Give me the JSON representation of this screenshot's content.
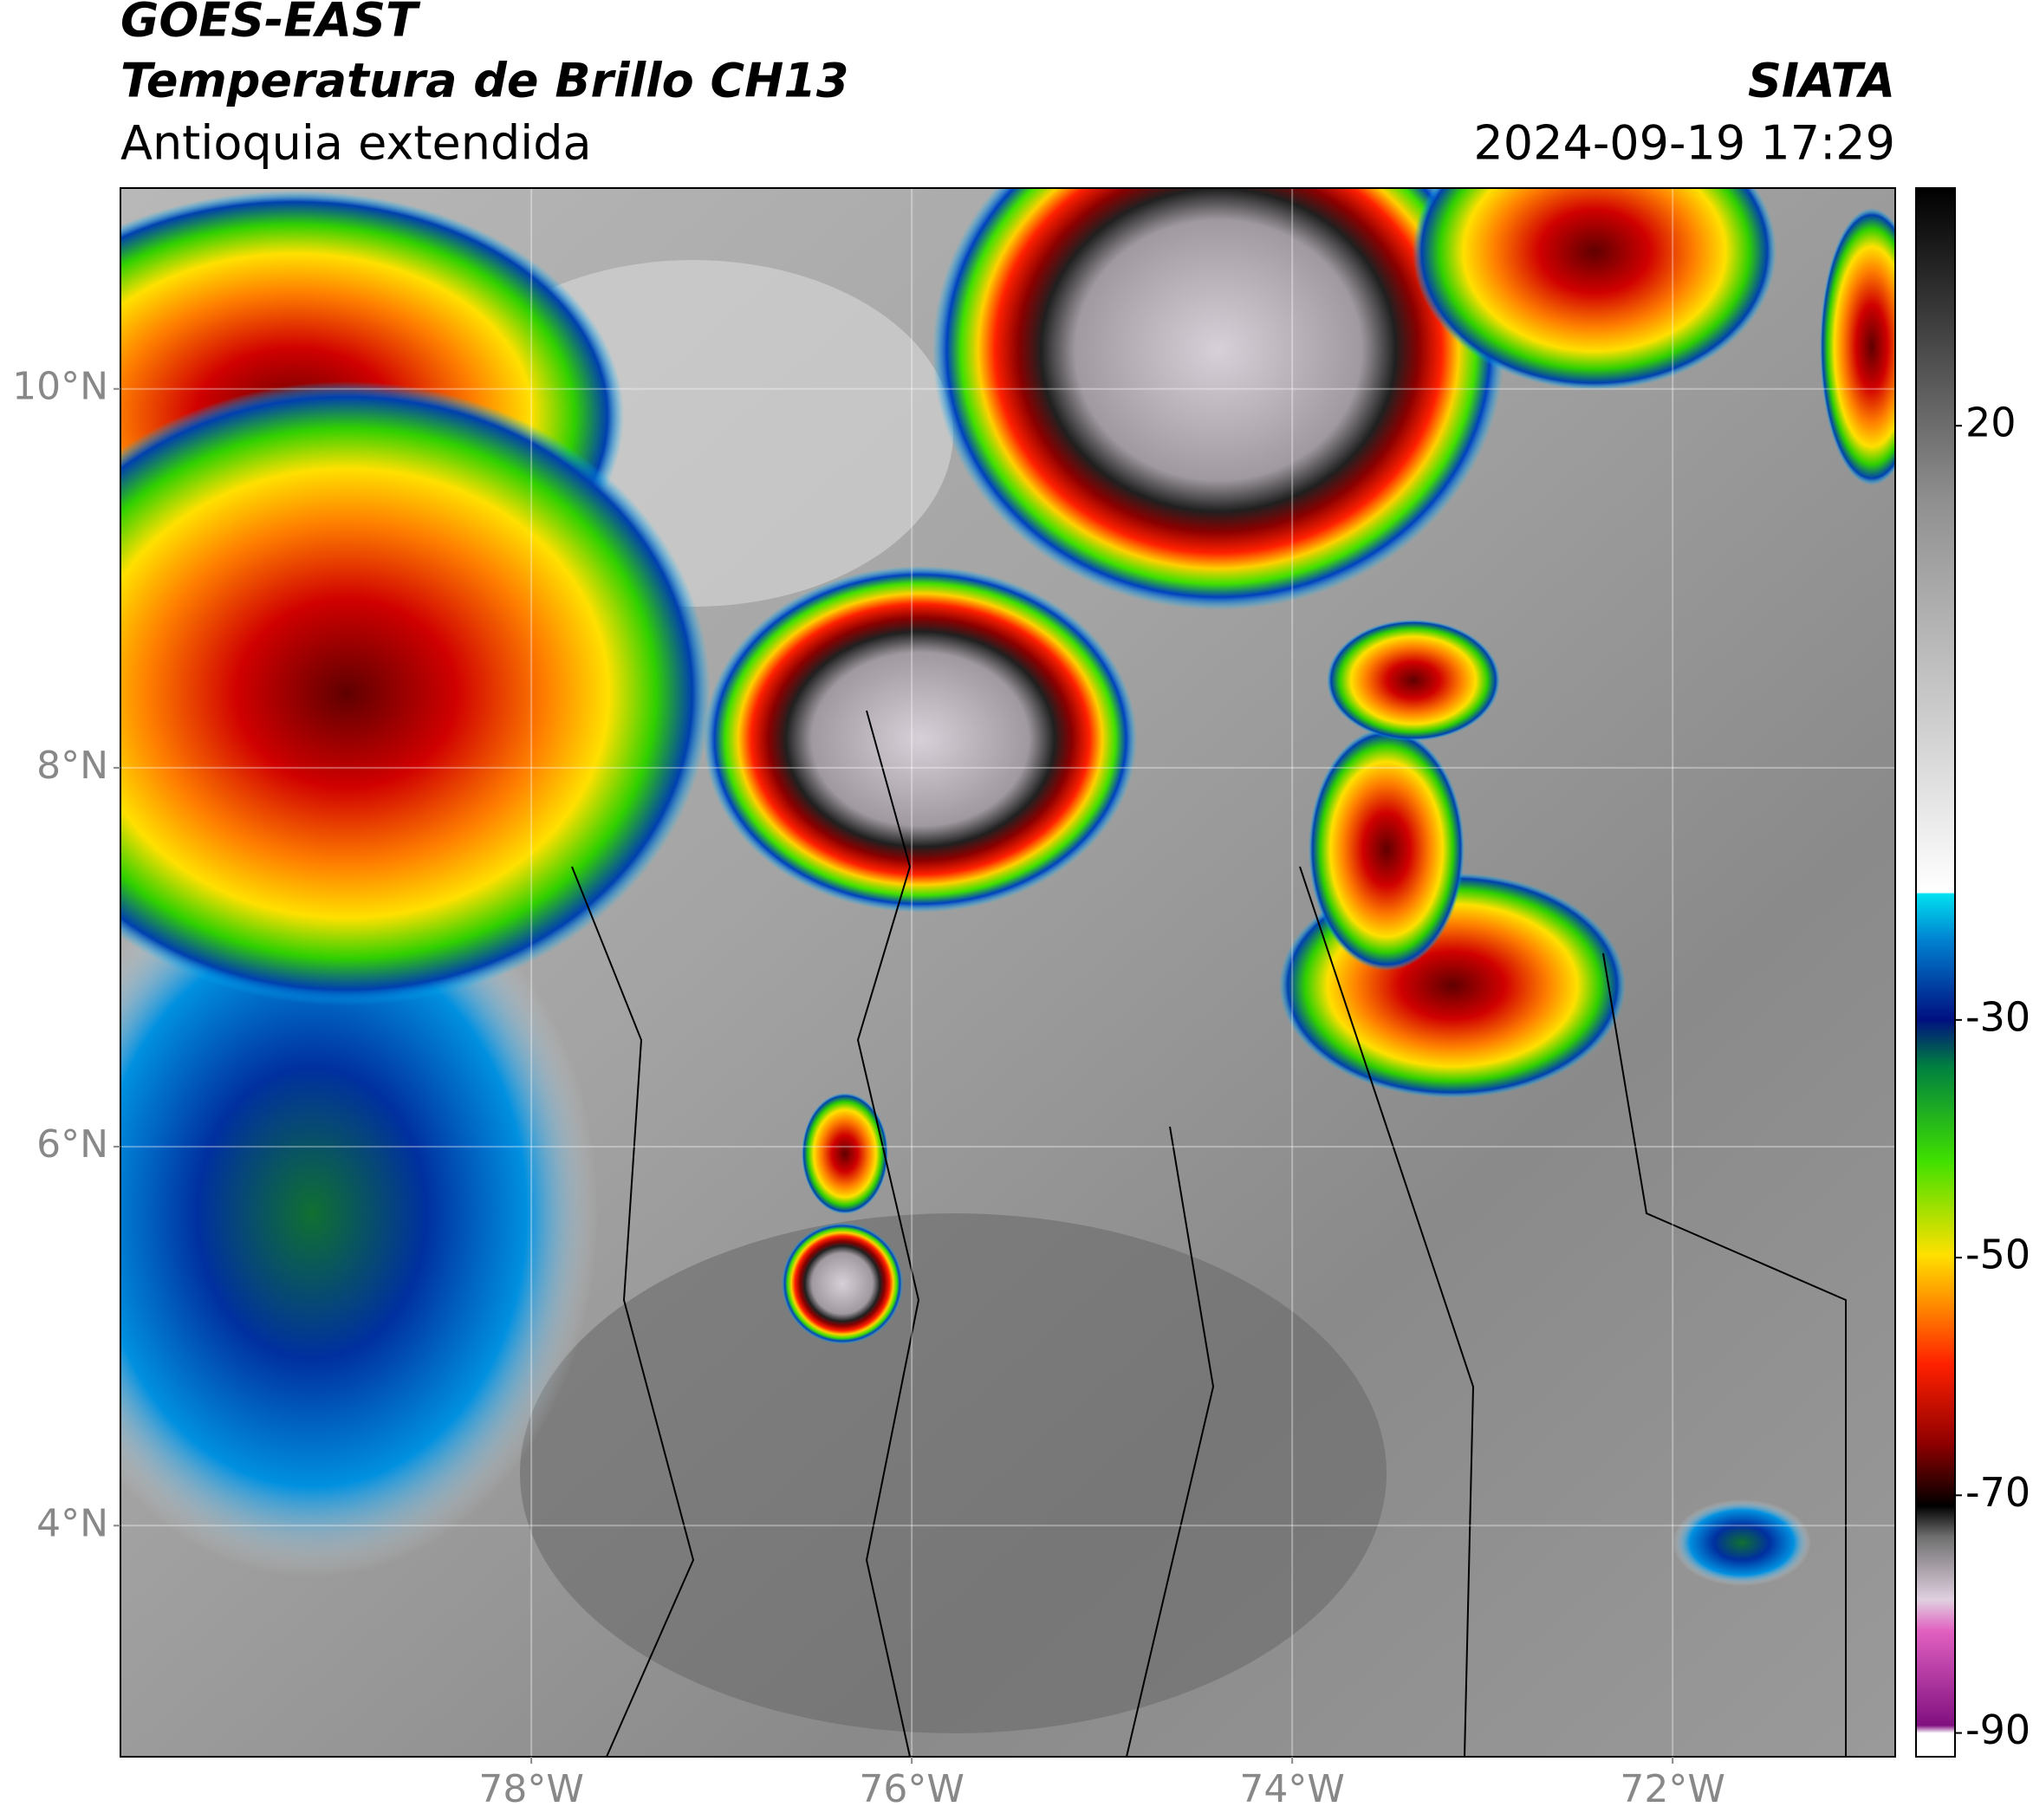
{
  "header": {
    "title": "GOES-EAST",
    "product": "Temperatura de Brillo CH13",
    "region": "Antioquia extendida",
    "agency": "SIATA",
    "timestamp": "2024-09-19 17:29"
  },
  "map": {
    "lon_range": [
      -80.16,
      -70.83
    ],
    "lat_range": [
      2.78,
      11.06
    ],
    "lon_ticks": [
      {
        "value": -78,
        "label": "78°W"
      },
      {
        "value": -76,
        "label": "76°W"
      },
      {
        "value": -74,
        "label": "74°W"
      },
      {
        "value": -72,
        "label": "72°W"
      }
    ],
    "lat_ticks": [
      {
        "value": 10,
        "label": "10°N"
      },
      {
        "value": 8,
        "label": "8°N"
      },
      {
        "value": 6,
        "label": "6°N"
      },
      {
        "value": 4,
        "label": "4°N"
      }
    ]
  },
  "colorbar": {
    "range": [
      -92,
      40
    ],
    "ticks": [
      20,
      -30,
      -50,
      -70,
      -90
    ]
  }
}
